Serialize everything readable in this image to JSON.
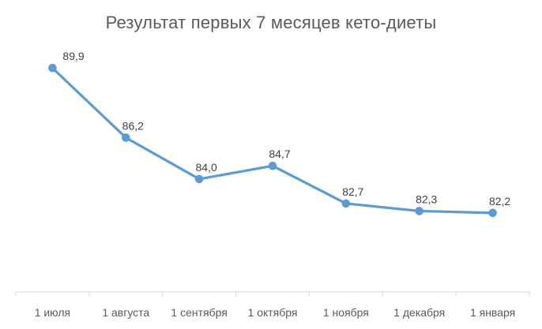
{
  "chart_data": {
    "type": "line",
    "title": "Результат первых 7 месяцев кето-диеты",
    "categories": [
      "1 июля",
      "1 августа",
      "1 сентября",
      "1 октября",
      "1 ноября",
      "1 декабря",
      "1 января"
    ],
    "series": [
      {
        "values": [
          89.9,
          86.2,
          84.0,
          84.7,
          82.7,
          82.3,
          82.2
        ],
        "labels": [
          "89,9",
          "86,2",
          "84,0",
          "84,7",
          "82,7",
          "82,3",
          "82,2"
        ],
        "color": "#5b9bd5"
      }
    ],
    "xlabel": "",
    "ylabel": "",
    "ylim": [
      78,
      91
    ],
    "grid": false,
    "y_axis_visible": false,
    "data_labels": true,
    "markers": true
  },
  "colors": {
    "line": "#5b9bd5",
    "title": "#595959",
    "label": "#404040",
    "tick": "#595959",
    "axis": "#d9d9d9"
  }
}
